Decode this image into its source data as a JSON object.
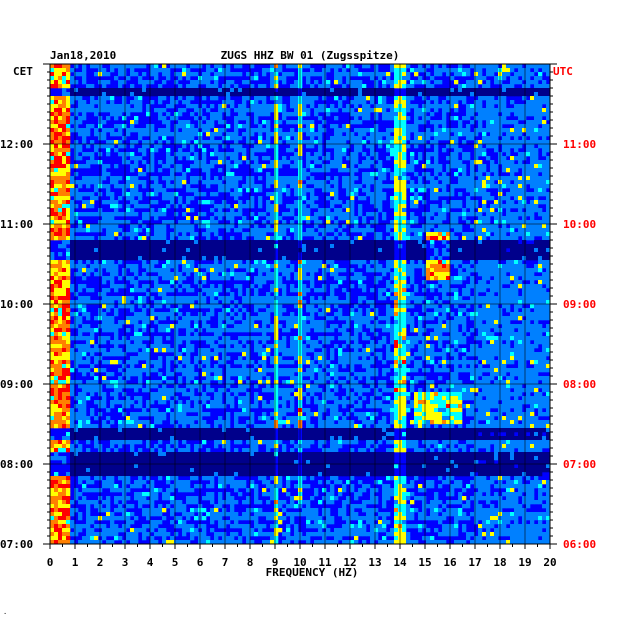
{
  "chart_data": {
    "type": "heatmap",
    "date": "Jan18,2010",
    "title": "ZUGS HHZ BW 01 (Zugsspitze)",
    "left_tz": "CET",
    "right_tz": "UTC",
    "xlabel": "FREQUENCY (HZ)",
    "xlim": [
      0,
      20
    ],
    "x_ticks": [
      "0",
      "1",
      "2",
      "3",
      "4",
      "5",
      "6",
      "7",
      "8",
      "9",
      "10",
      "11",
      "12",
      "13",
      "14",
      "15",
      "16",
      "17",
      "18",
      "19",
      "20"
    ],
    "time_range_cet_hours": [
      7,
      13
    ],
    "left_ticks": [
      {
        "t": 12,
        "label": "12:00"
      },
      {
        "t": 11,
        "label": "11:00"
      },
      {
        "t": 10,
        "label": "10:00"
      },
      {
        "t": 9,
        "label": "09:00"
      },
      {
        "t": 8,
        "label": "08:00"
      },
      {
        "t": 7,
        "label": "07:00"
      }
    ],
    "right_ticks": [
      {
        "t": 12,
        "label": "11:00"
      },
      {
        "t": 11,
        "label": "10:00"
      },
      {
        "t": 10,
        "label": "09:00"
      },
      {
        "t": 9,
        "label": "08:00"
      },
      {
        "t": 8,
        "label": "07:00"
      },
      {
        "t": 7,
        "label": "06:00"
      }
    ],
    "colorscale": [
      "#00008b",
      "#0000ff",
      "#0080ff",
      "#00ffff",
      "#ffff00",
      "#ff8000",
      "#ff0000"
    ],
    "grid": true,
    "features": [
      {
        "freq": [
          0,
          0.8
        ],
        "time": [
          7,
          13
        ],
        "level": "high"
      },
      {
        "freq": [
          8.9,
          9.1
        ],
        "time": [
          7,
          13
        ],
        "level": "medium"
      },
      {
        "freq": [
          9.9,
          10.1
        ],
        "time": [
          7.5,
          13
        ],
        "level": "medium"
      },
      {
        "freq": [
          13.8,
          14.2
        ],
        "time": [
          7,
          13
        ],
        "level": "medium"
      },
      {
        "freq": [
          15,
          16
        ],
        "time": [
          10.3,
          10.9
        ],
        "level": "high"
      },
      {
        "freq": [
          14.5,
          16.5
        ],
        "time": [
          8.5,
          8.9
        ],
        "level": "medium"
      }
    ],
    "quiet_bands_cet_hours": [
      [
        7.85,
        8.15
      ],
      [
        8.3,
        8.45
      ],
      [
        10.55,
        10.8
      ],
      [
        12.6,
        12.7
      ]
    ]
  }
}
